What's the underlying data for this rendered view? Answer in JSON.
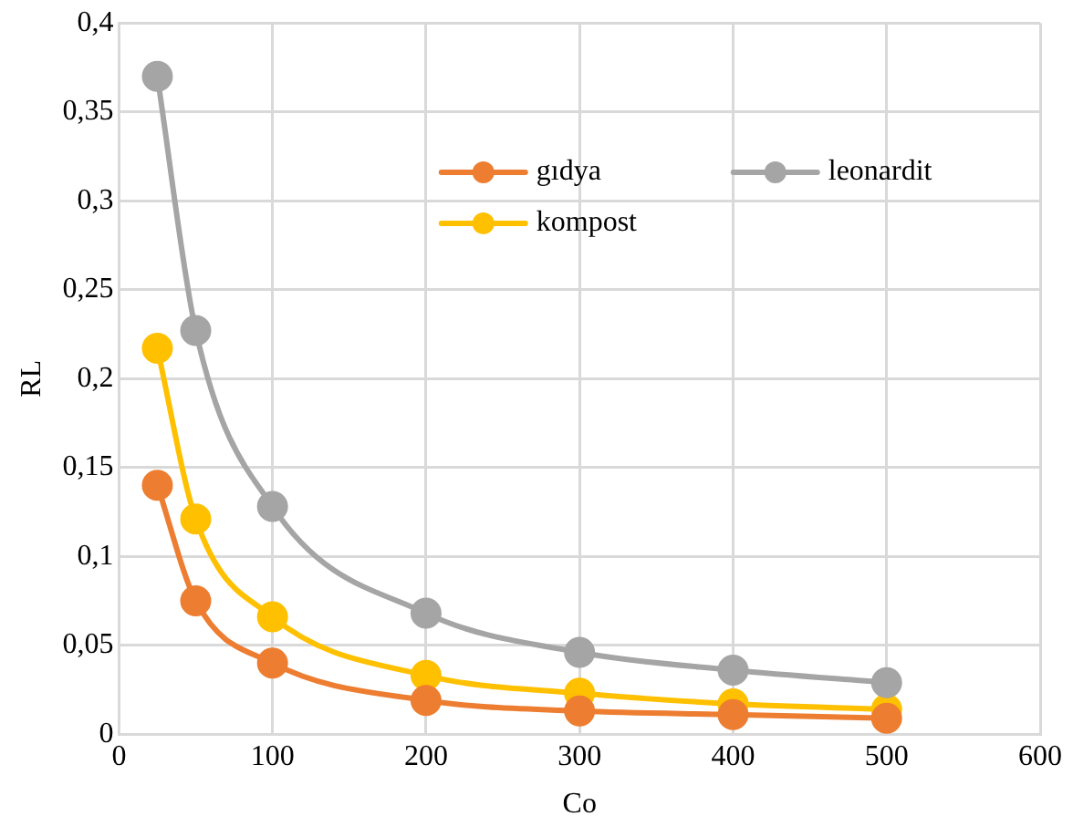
{
  "chart_data": {
    "type": "line",
    "xlabel": "Co",
    "ylabel": "RL",
    "x": [
      25,
      50,
      100,
      200,
      300,
      400,
      500
    ],
    "series": [
      {
        "name": "gıdya",
        "color": "#ed7d31",
        "values": [
          0.14,
          0.075,
          0.04,
          0.019,
          0.013,
          0.011,
          0.009
        ]
      },
      {
        "name": "leonardit",
        "color": "#a5a5a5",
        "values": [
          0.37,
          0.227,
          0.128,
          0.068,
          0.046,
          0.036,
          0.029
        ]
      },
      {
        "name": "kompost",
        "color": "#ffc000",
        "values": [
          0.217,
          0.121,
          0.066,
          0.033,
          0.023,
          0.017,
          0.014
        ]
      }
    ],
    "xlim": [
      0,
      600
    ],
    "xticks": [
      0,
      100,
      200,
      300,
      400,
      500,
      600
    ],
    "ylim": [
      0,
      0.4
    ],
    "yticks": [
      0,
      {
        "value": 0.05,
        "label": "0,05"
      },
      {
        "value": 0.1,
        "label": "0,1"
      },
      {
        "value": 0.15,
        "label": "0,15"
      },
      {
        "value": 0.2,
        "label": "0,2"
      },
      {
        "value": 0.25,
        "label": "0,25"
      },
      {
        "value": 0.3,
        "label": "0,3"
      },
      {
        "value": 0.35,
        "label": "0,35"
      },
      {
        "value": 0.4,
        "label": "0,4"
      }
    ],
    "grid": true,
    "legend": "top right",
    "marker": "circle",
    "line_style": "solid"
  }
}
